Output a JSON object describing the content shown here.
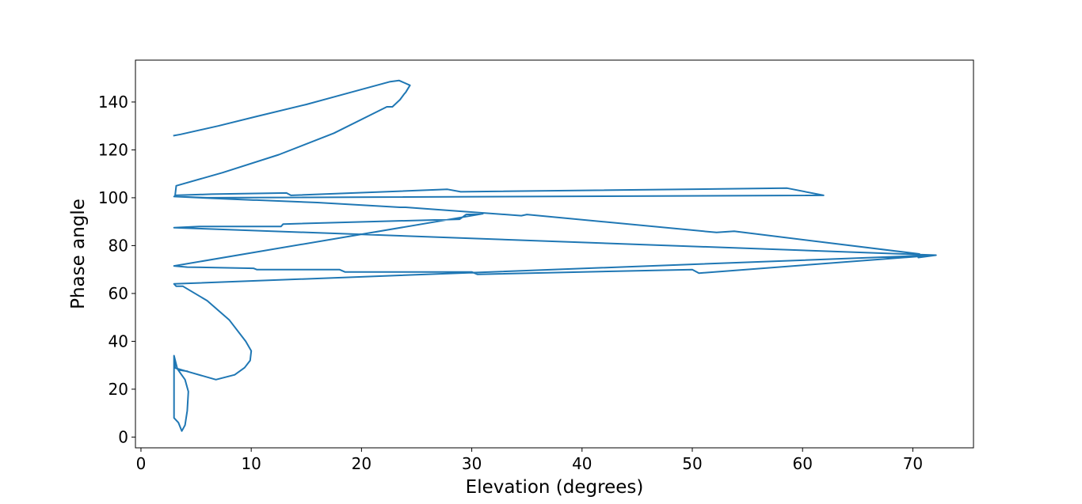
{
  "chart_data": {
    "type": "line",
    "title": "",
    "xlabel": "Elevation (degrees)",
    "ylabel": "Phase angle",
    "xlim": [
      -0.5,
      75.5
    ],
    "ylim": [
      -4.5,
      157.5
    ],
    "xticks": [
      0,
      10,
      20,
      30,
      40,
      50,
      60,
      70
    ],
    "yticks": [
      0,
      20,
      40,
      60,
      80,
      100,
      120,
      140
    ],
    "grid": false,
    "legend": "none",
    "colors": {
      "line": "#1f77b4",
      "axes": "#000000",
      "background": "#ffffff"
    },
    "series": [
      {
        "x": [
          3.0,
          3.6,
          7.0,
          10.5,
          15.0,
          19.0,
          22.6,
          23.4,
          24.4,
          24.0,
          23.9,
          23.5,
          22.8,
          22.3,
          17.5,
          12.5,
          7.4,
          3.2,
          3.1,
          6.4,
          13.2,
          13.6,
          27.8,
          29.0,
          58.6,
          61.9,
          6.5,
          6.0,
          3.0,
          10.2,
          10.5,
          16.0,
          23.5,
          24.0,
          34.5,
          35.0,
          52.2,
          53.8,
          70.6,
          70.5,
          72.1,
          3.0,
          3.0,
          5.3,
          12.7,
          12.9,
          28.9,
          29.5,
          31.0,
          31.0,
          3.0,
          4.2,
          10.2,
          10.5,
          18.0,
          18.5,
          30.0,
          30.5,
          50.0,
          50.6,
          70.6,
          70.5,
          72.1,
          3.0,
          3.2,
          3.8,
          6.0,
          8.0,
          9.5,
          10.0,
          9.9,
          9.4,
          8.5,
          6.8,
          4.5,
          3.0,
          3.0,
          3.3,
          4.0,
          4.3,
          4.2,
          4.0,
          3.7,
          3.4,
          3.0,
          3.0,
          3.0,
          3.1,
          3.5,
          4.2,
          4.2
        ],
        "y": [
          126.0,
          126.5,
          130.0,
          134.0,
          139.0,
          144.0,
          148.5,
          149.0,
          147.0,
          144.0,
          143.5,
          141.0,
          138.0,
          138.0,
          127.0,
          118.0,
          110.5,
          105.0,
          101.0,
          101.5,
          102.0,
          101.0,
          103.5,
          102.5,
          104.0,
          101.0,
          100.0,
          100.0,
          100.5,
          99.0,
          99.0,
          98.0,
          96.0,
          96.0,
          92.5,
          93.0,
          85.5,
          86.0,
          76.5,
          75.0,
          76.0,
          87.5,
          87.5,
          88.0,
          88.0,
          89.0,
          91.0,
          93.0,
          93.3,
          93.3,
          71.5,
          71.0,
          70.5,
          70.0,
          70.0,
          69.0,
          69.0,
          68.0,
          70.0,
          68.5,
          75.5,
          75.0,
          76.0,
          64.0,
          63.0,
          63.0,
          57.0,
          49.0,
          40.0,
          36.0,
          32.0,
          29.0,
          26.0,
          24.0,
          27.0,
          29.0,
          34.0,
          28.5,
          24.0,
          19.0,
          11.0,
          5.0,
          2.5,
          6.0,
          8.0,
          11.0,
          33.0,
          29.0,
          28.0,
          27.5,
          27.5
        ]
      }
    ]
  }
}
